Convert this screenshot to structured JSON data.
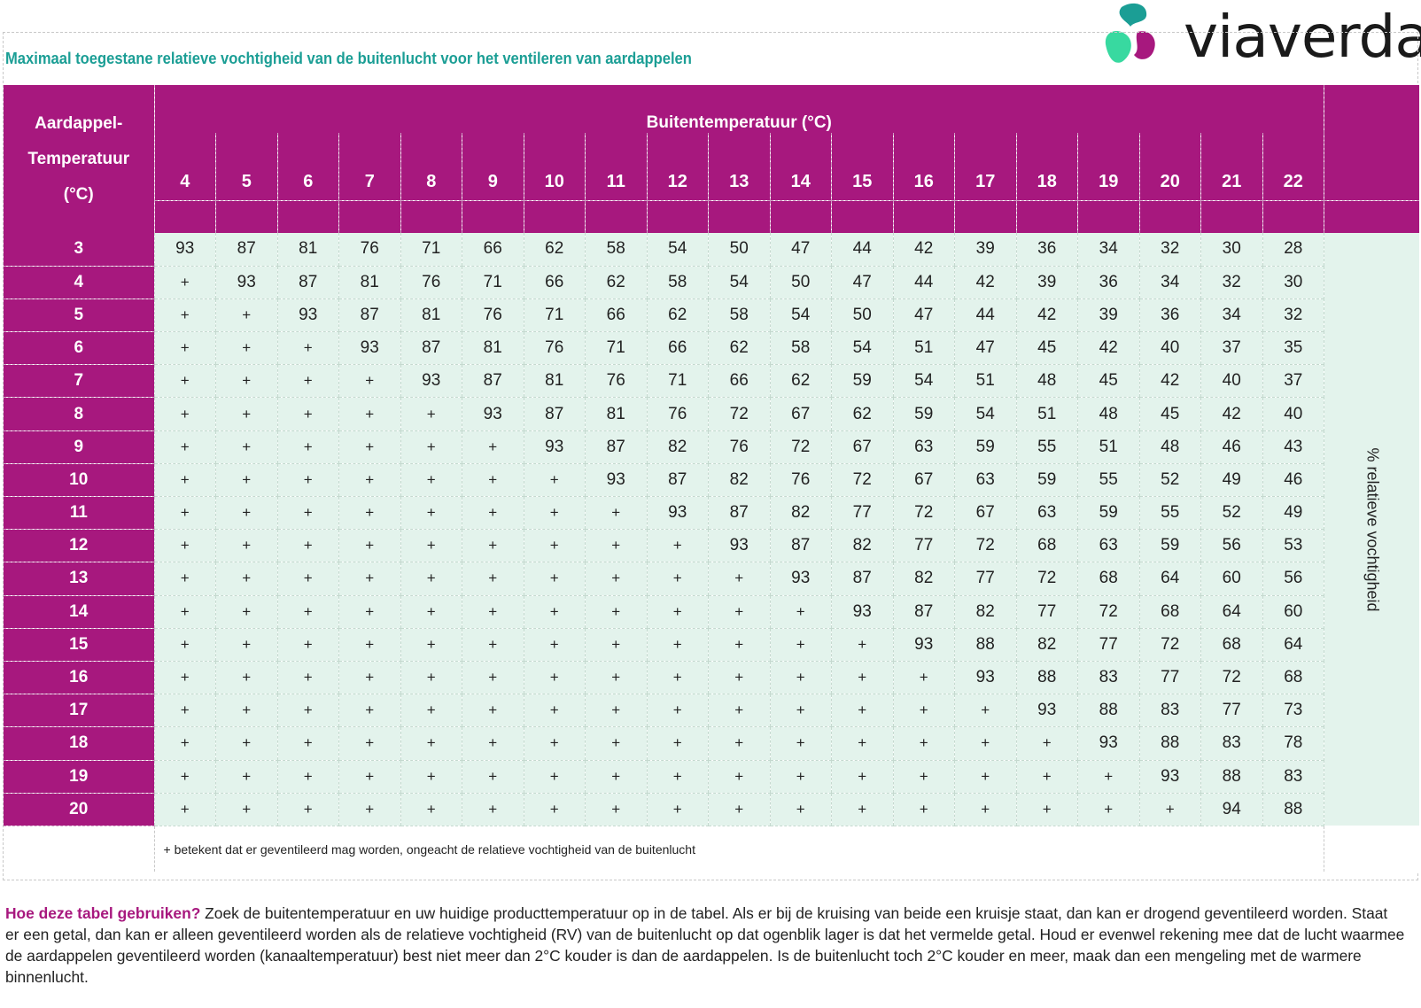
{
  "brand": {
    "name": "viaverda",
    "colors": {
      "teal": "#1b9e95",
      "magenta": "#a7187e",
      "mint": "#e3f3ec"
    }
  },
  "title": "Maximaal toegestane relatieve vochtigheid van de buitenlucht voor het ventileren van aardappelen",
  "table": {
    "corner_lines": [
      "Aardappel-",
      "Temperatuur",
      "(°C)"
    ],
    "outside_label": "Buitentemperatuur (°C)",
    "side_label": "% relatieve vochtigheid",
    "columns": [
      "4",
      "5",
      "6",
      "7",
      "8",
      "9",
      "10",
      "11",
      "12",
      "13",
      "14",
      "15",
      "16",
      "17",
      "18",
      "19",
      "20",
      "21",
      "22"
    ],
    "rows": [
      {
        "temp": "3",
        "values": [
          "93",
          "87",
          "81",
          "76",
          "71",
          "66",
          "62",
          "58",
          "54",
          "50",
          "47",
          "44",
          "42",
          "39",
          "36",
          "34",
          "32",
          "30",
          "28"
        ]
      },
      {
        "temp": "4",
        "values": [
          "+",
          "93",
          "87",
          "81",
          "76",
          "71",
          "66",
          "62",
          "58",
          "54",
          "50",
          "47",
          "44",
          "42",
          "39",
          "36",
          "34",
          "32",
          "30"
        ]
      },
      {
        "temp": "5",
        "values": [
          "+",
          "+",
          "93",
          "87",
          "81",
          "76",
          "71",
          "66",
          "62",
          "58",
          "54",
          "50",
          "47",
          "44",
          "42",
          "39",
          "36",
          "34",
          "32"
        ]
      },
      {
        "temp": "6",
        "values": [
          "+",
          "+",
          "+",
          "93",
          "87",
          "81",
          "76",
          "71",
          "66",
          "62",
          "58",
          "54",
          "51",
          "47",
          "45",
          "42",
          "40",
          "37",
          "35"
        ]
      },
      {
        "temp": "7",
        "values": [
          "+",
          "+",
          "+",
          "+",
          "93",
          "87",
          "81",
          "76",
          "71",
          "66",
          "62",
          "59",
          "54",
          "51",
          "48",
          "45",
          "42",
          "40",
          "37"
        ]
      },
      {
        "temp": "8",
        "values": [
          "+",
          "+",
          "+",
          "+",
          "+",
          "93",
          "87",
          "81",
          "76",
          "72",
          "67",
          "62",
          "59",
          "54",
          "51",
          "48",
          "45",
          "42",
          "40"
        ]
      },
      {
        "temp": "9",
        "values": [
          "+",
          "+",
          "+",
          "+",
          "+",
          "+",
          "93",
          "87",
          "82",
          "76",
          "72",
          "67",
          "63",
          "59",
          "55",
          "51",
          "48",
          "46",
          "43"
        ]
      },
      {
        "temp": "10",
        "values": [
          "+",
          "+",
          "+",
          "+",
          "+",
          "+",
          "+",
          "93",
          "87",
          "82",
          "76",
          "72",
          "67",
          "63",
          "59",
          "55",
          "52",
          "49",
          "46"
        ]
      },
      {
        "temp": "11",
        "values": [
          "+",
          "+",
          "+",
          "+",
          "+",
          "+",
          "+",
          "+",
          "93",
          "87",
          "82",
          "77",
          "72",
          "67",
          "63",
          "59",
          "55",
          "52",
          "49"
        ]
      },
      {
        "temp": "12",
        "values": [
          "+",
          "+",
          "+",
          "+",
          "+",
          "+",
          "+",
          "+",
          "+",
          "93",
          "87",
          "82",
          "77",
          "72",
          "68",
          "63",
          "59",
          "56",
          "53"
        ]
      },
      {
        "temp": "13",
        "values": [
          "+",
          "+",
          "+",
          "+",
          "+",
          "+",
          "+",
          "+",
          "+",
          "+",
          "93",
          "87",
          "82",
          "77",
          "72",
          "68",
          "64",
          "60",
          "56"
        ]
      },
      {
        "temp": "14",
        "values": [
          "+",
          "+",
          "+",
          "+",
          "+",
          "+",
          "+",
          "+",
          "+",
          "+",
          "+",
          "93",
          "87",
          "82",
          "77",
          "72",
          "68",
          "64",
          "60"
        ]
      },
      {
        "temp": "15",
        "values": [
          "+",
          "+",
          "+",
          "+",
          "+",
          "+",
          "+",
          "+",
          "+",
          "+",
          "+",
          "+",
          "93",
          "88",
          "82",
          "77",
          "72",
          "68",
          "64"
        ]
      },
      {
        "temp": "16",
        "values": [
          "+",
          "+",
          "+",
          "+",
          "+",
          "+",
          "+",
          "+",
          "+",
          "+",
          "+",
          "+",
          "+",
          "93",
          "88",
          "83",
          "77",
          "72",
          "68"
        ]
      },
      {
        "temp": "17",
        "values": [
          "+",
          "+",
          "+",
          "+",
          "+",
          "+",
          "+",
          "+",
          "+",
          "+",
          "+",
          "+",
          "+",
          "+",
          "93",
          "88",
          "83",
          "77",
          "73"
        ]
      },
      {
        "temp": "18",
        "values": [
          "+",
          "+",
          "+",
          "+",
          "+",
          "+",
          "+",
          "+",
          "+",
          "+",
          "+",
          "+",
          "+",
          "+",
          "+",
          "93",
          "88",
          "83",
          "78"
        ]
      },
      {
        "temp": "19",
        "values": [
          "+",
          "+",
          "+",
          "+",
          "+",
          "+",
          "+",
          "+",
          "+",
          "+",
          "+",
          "+",
          "+",
          "+",
          "+",
          "+",
          "93",
          "88",
          "83"
        ]
      },
      {
        "temp": "20",
        "values": [
          "+",
          "+",
          "+",
          "+",
          "+",
          "+",
          "+",
          "+",
          "+",
          "+",
          "+",
          "+",
          "+",
          "+",
          "+",
          "+",
          "+",
          "94",
          "88"
        ]
      }
    ],
    "footnote": "+ betekent dat er geventileerd mag worden, ongeacht de relatieve vochtigheid van de buitenlucht"
  },
  "help": {
    "heading": "Hoe deze tabel gebruiken?",
    "body": " Zoek de buitentemperatuur en uw huidige producttemperatuur op in de tabel. Als er bij de kruising van beide een kruisje staat, dan kan er drogend geventileerd worden. Staat er een getal, dan kan er alleen geventileerd worden als de relatieve vochtigheid (RV) van de buitenlucht op dat ogenblik lager is dat het vermelde getal. Houd er evenwel rekening mee dat de lucht waarmee de aardappelen geventileerd worden (kanaaltemperatuur) best niet meer dan 2°C kouder is dan de aardappelen. Is de buitenlucht toch 2°C kouder en meer, maak dan een mengeling met de warmere binnenlucht."
  }
}
